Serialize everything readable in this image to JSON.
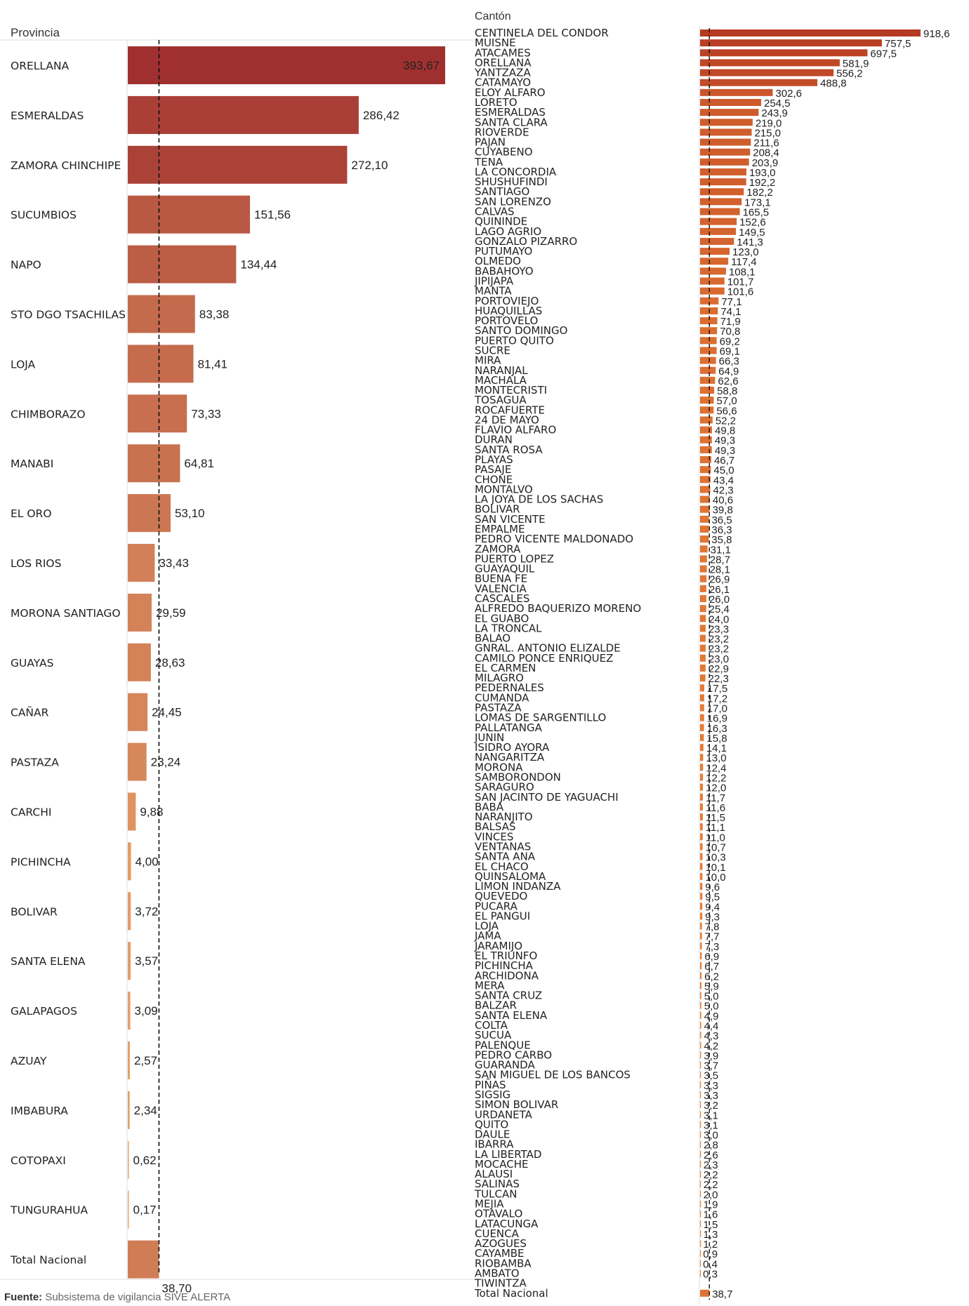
{
  "chart_data": [
    {
      "type": "bar",
      "orientation": "horizontal",
      "category_header": "Provincia",
      "categories": [
        "ORELLANA",
        "ESMERALDAS",
        "ZAMORA CHINCHIPE",
        "SUCUMBIOS",
        "NAPO",
        "STO DGO TSACHILAS",
        "LOJA",
        "CHIMBORAZO",
        "MANABI",
        "EL ORO",
        "LOS RIOS",
        "MORONA SANTIAGO",
        "GUAYAS",
        "CAÑAR",
        "PASTAZA",
        "CARCHI",
        "PICHINCHA",
        "BOLIVAR",
        "SANTA ELENA",
        "GALAPAGOS",
        "AZUAY",
        "IMBABURA",
        "COTOPAXI",
        "TUNGURAHUA",
        "Total Nacional"
      ],
      "values": [
        393.67,
        286.42,
        272.1,
        151.56,
        134.44,
        83.38,
        81.41,
        73.33,
        64.81,
        53.1,
        33.43,
        29.59,
        28.63,
        24.45,
        23.24,
        9.88,
        4.0,
        3.72,
        3.57,
        3.09,
        2.57,
        2.34,
        0.62,
        0.17,
        38.7
      ],
      "value_labels": [
        "393,67",
        "286,42",
        "272,10",
        "151,56",
        "134,44",
        "83,38",
        "81,41",
        "73,33",
        "64,81",
        "53,10",
        "33,43",
        "29,59",
        "28,63",
        "24,45",
        "23,24",
        "9,88",
        "4,00",
        "3,72",
        "3,57",
        "3,09",
        "2,57",
        "2,34",
        "0,62",
        "0,17",
        "38,70"
      ],
      "reference_line": 38.7,
      "xlim": [
        0,
        393.67
      ],
      "color_low": "#f0b070",
      "color_high": "#a0302f"
    },
    {
      "type": "bar",
      "orientation": "horizontal",
      "category_header": "Cantón",
      "categories": [
        "CENTINELA DEL CONDOR",
        "MUISNE",
        "ATACAMES",
        "ORELLANA",
        "YANTZAZA",
        "CATAMAYO",
        "ELOY ALFARO",
        "LORETO",
        "ESMERALDAS",
        "SANTA CLARA",
        "RIOVERDE",
        "PAJAN",
        "CUYABENO",
        "TENA",
        "LA CONCORDIA",
        "SHUSHUFINDI",
        "SANTIAGO",
        "SAN LORENZO",
        "CALVAS",
        "QUININDE",
        "LAGO AGRIO",
        "GONZALO PIZARRO",
        "PUTUMAYO",
        "OLMEDO",
        "BABAHOYO",
        "JIPIJAPA",
        "MANTA",
        "PORTOVIEJO",
        "HUAQUILLAS",
        "PORTOVELO",
        "SANTO DOMINGO",
        "PUERTO QUITO",
        "SUCRE",
        "MIRA",
        "NARANJAL",
        "MACHALA",
        "MONTECRISTI",
        "TOSAGUA",
        "ROCAFUERTE",
        "24 DE MAYO",
        "FLAVIO ALFARO",
        "DURAN",
        "SANTA ROSA",
        "PLAYAS",
        "PASAJE",
        "CHONE",
        "MONTALVO",
        "LA JOYA DE LOS SACHAS",
        "BOLIVAR",
        "SAN VICENTE",
        "EMPALME",
        "PEDRO VICENTE MALDONADO",
        "ZAMORA",
        "PUERTO LOPEZ",
        "GUAYAQUIL",
        "BUENA FE",
        "VALENCIA",
        "CASCALES",
        "ALFREDO BAQUERIZO MORENO",
        "EL GUABO",
        "LA TRONCAL",
        "BALAO",
        "GNRAL. ANTONIO ELIZALDE",
        "CAMILO PONCE ENRIQUEZ",
        "EL CARMEN",
        "MILAGRO",
        "PEDERNALES",
        "CUMANDA",
        "PASTAZA",
        "LOMAS DE SARGENTILLO",
        "PALLATANGA",
        "JUNIN",
        "ISIDRO AYORA",
        "NANGARITZA",
        "MORONA",
        "SAMBORONDON",
        "SARAGURO",
        "SAN JACINTO DE YAGUACHI",
        "BABA",
        "NARANJITO",
        "BALSAS",
        "VINCES",
        "VENTANAS",
        "SANTA ANA",
        "EL CHACO",
        "QUINSALOMA",
        "LIMON INDANZA",
        "QUEVEDO",
        "PUCARA",
        "EL PANGUI",
        "LOJA",
        "JAMA",
        "JARAMIJO",
        "EL TRIUNFO",
        "PICHINCHA",
        "ARCHIDONA",
        "MERA",
        "SANTA CRUZ",
        "BALZAR",
        "SANTA ELENA",
        "COLTA",
        "SUCUA",
        "PALENQUE",
        "PEDRO CARBO",
        "GUARANDA",
        "SAN MIGUEL DE LOS BANCOS",
        "PIÑAS",
        "SIGSIG",
        "SIMON BOLIVAR",
        "URDANETA",
        "QUITO",
        "DAULE",
        "IBARRA",
        "LA LIBERTAD",
        "MOCACHE",
        "ALAUSI",
        "SALINAS",
        "TULCAN",
        "MEJIA",
        "OTAVALO",
        "LATACUNGA",
        "CUENCA",
        "AZOGUES",
        "CAYAMBE",
        "RIOBAMBA",
        "AMBATO",
        "TIWINTZA",
        "Total Nacional"
      ],
      "values": [
        918.6,
        757.5,
        697.5,
        581.9,
        556.2,
        488.8,
        302.6,
        254.5,
        243.9,
        219.0,
        215.0,
        211.6,
        208.4,
        203.9,
        193.0,
        192.2,
        182.2,
        173.1,
        165.5,
        152.6,
        149.5,
        141.3,
        123.0,
        117.4,
        108.1,
        101.7,
        101.6,
        77.1,
        74.1,
        71.9,
        70.8,
        69.2,
        69.1,
        66.3,
        64.9,
        62.6,
        58.8,
        57.0,
        56.6,
        52.2,
        49.8,
        49.3,
        49.3,
        46.7,
        45.0,
        43.4,
        42.3,
        40.6,
        39.8,
        36.5,
        36.3,
        35.8,
        31.1,
        28.7,
        28.1,
        26.9,
        26.1,
        26.0,
        25.4,
        24.0,
        23.3,
        23.2,
        23.2,
        23.0,
        22.9,
        22.3,
        17.5,
        17.2,
        17.0,
        16.9,
        16.3,
        15.8,
        14.1,
        13.0,
        12.4,
        12.2,
        12.0,
        11.7,
        11.6,
        11.5,
        11.1,
        11.0,
        10.7,
        10.3,
        10.1,
        10.0,
        9.6,
        9.5,
        9.4,
        9.3,
        7.8,
        7.7,
        7.3,
        6.9,
        6.7,
        6.2,
        5.9,
        5.0,
        5.0,
        4.9,
        4.4,
        4.3,
        4.2,
        3.9,
        3.7,
        3.5,
        3.3,
        3.3,
        3.2,
        3.1,
        3.1,
        3.0,
        2.8,
        2.6,
        2.3,
        2.2,
        2.2,
        2.0,
        1.9,
        1.6,
        1.5,
        1.3,
        1.2,
        0.9,
        0.4,
        0.3,
        0.0,
        38.7
      ],
      "value_labels": [
        "918,6",
        "757,5",
        "697,5",
        "581,9",
        "556,2",
        "488,8",
        "302,6",
        "254,5",
        "243,9",
        "219,0",
        "215,0",
        "211,6",
        "208,4",
        "203,9",
        "193,0",
        "192,2",
        "182,2",
        "173,1",
        "165,5",
        "152,6",
        "149,5",
        "141,3",
        "123,0",
        "117,4",
        "108,1",
        "101,7",
        "101,6",
        "77,1",
        "74,1",
        "71,9",
        "70,8",
        "69,2",
        "69,1",
        "66,3",
        "64,9",
        "62,6",
        "58,8",
        "57,0",
        "56,6",
        "52,2",
        "49,8",
        "49,3",
        "49,3",
        "46,7",
        "45,0",
        "43,4",
        "42,3",
        "40,6",
        "39,8",
        "36,5",
        "36,3",
        "35,8",
        "31,1",
        "28,7",
        "28,1",
        "26,9",
        "26,1",
        "26,0",
        "25,4",
        "24,0",
        "23,3",
        "23,2",
        "23,2",
        "23,0",
        "22,9",
        "22,3",
        "17,5",
        "17,2",
        "17,0",
        "16,9",
        "16,3",
        "15,8",
        "14,1",
        "13,0",
        "12,4",
        "12,2",
        "12,0",
        "11,7",
        "11,6",
        "11,5",
        "11,1",
        "11,0",
        "10,7",
        "10,3",
        "10,1",
        "10,0",
        "9,6",
        "9,5",
        "9,4",
        "9,3",
        "7,8",
        "7,7",
        "7,3",
        "6,9",
        "6,7",
        "6,2",
        "5,9",
        "5,0",
        "5,0",
        "4,9",
        "4,4",
        "4,3",
        "4,2",
        "3,9",
        "3,7",
        "3,5",
        "3,3",
        "3,3",
        "3,2",
        "3,1",
        "3,1",
        "3,0",
        "2,8",
        "2,6",
        "2,3",
        "2,2",
        "2,2",
        "2,0",
        "1,9",
        "1,6",
        "1,5",
        "1,3",
        "1,2",
        "0,9",
        "0,4",
        "0,3",
        "",
        "38,7"
      ],
      "reference_line": 38.7,
      "xlim": [
        0,
        918.6
      ],
      "color_low": "#f08a3a",
      "color_high": "#b53a22"
    }
  ],
  "footer": {
    "source_label": "Fuente:",
    "source_text": " Subsistema de vigilancia SIVE  ALERTA"
  }
}
